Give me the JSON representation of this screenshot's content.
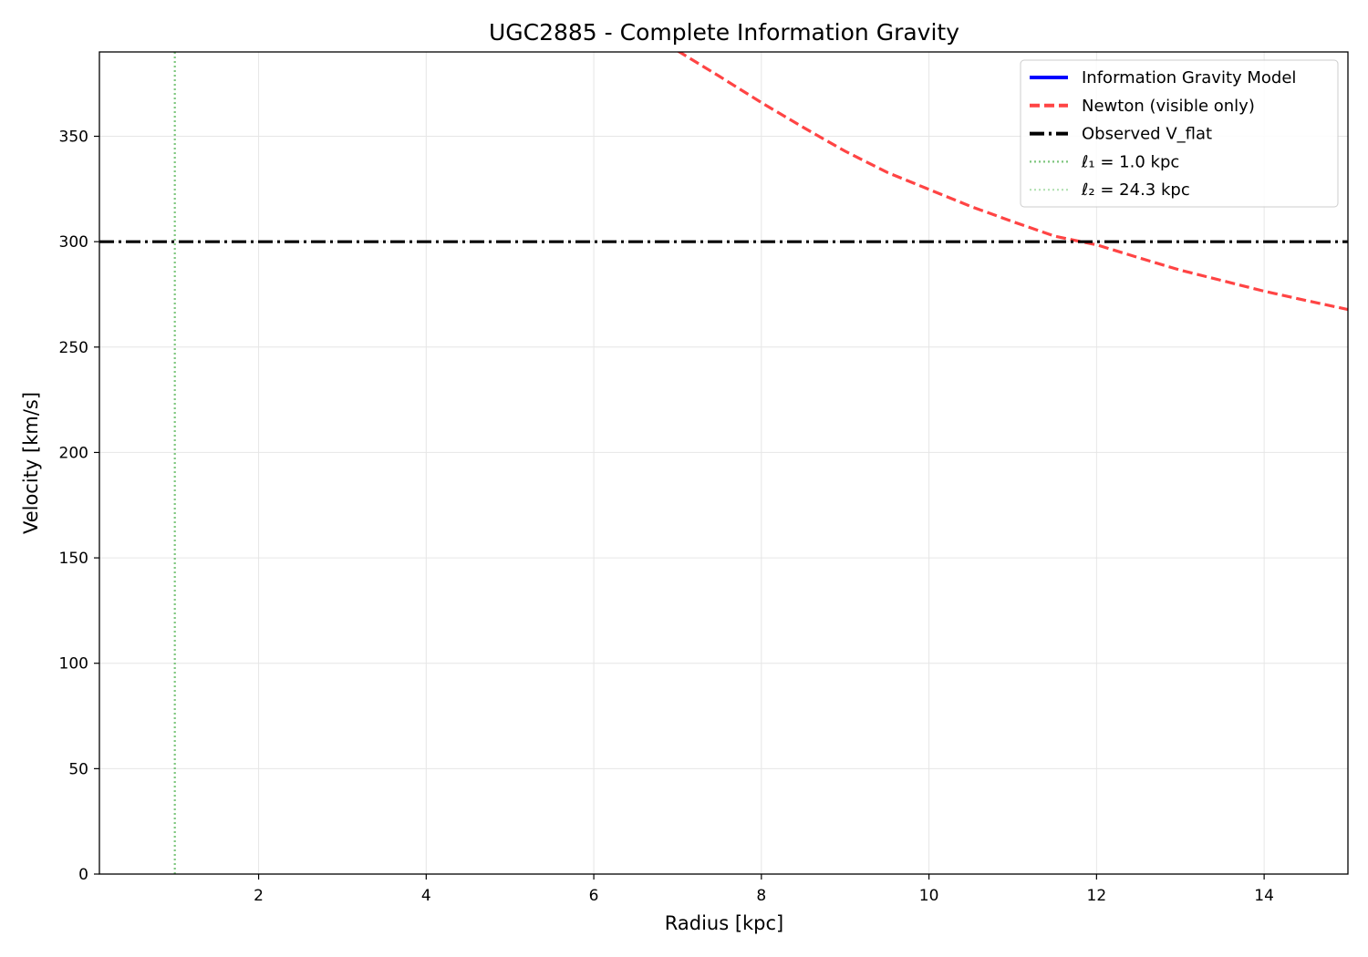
{
  "chart_data": {
    "type": "line",
    "title": "UGC2885 - Complete Information Gravity",
    "xlabel": "Radius [kpc]",
    "ylabel": "Velocity [km/s]",
    "xlim": [
      0.1,
      15.0
    ],
    "ylim": [
      0,
      390
    ],
    "xticks": [
      2,
      4,
      6,
      8,
      10,
      12,
      14
    ],
    "yticks": [
      0,
      50,
      100,
      150,
      200,
      250,
      300,
      350
    ],
    "grid": true,
    "legend_position": "top-right",
    "series": [
      {
        "name": "Information Gravity Model",
        "style": "solid",
        "color": "#0000ff",
        "x": [],
        "y": []
      },
      {
        "name": "Newton (visible only)",
        "style": "dashed",
        "color": "#ff4444",
        "x": [
          7.0,
          7.5,
          8.0,
          8.5,
          9.0,
          9.5,
          10.0,
          10.5,
          11.0,
          11.5,
          12.0,
          12.5,
          13.0,
          13.5,
          14.0,
          14.5,
          15.0
        ],
        "y": [
          390.5,
          378.4,
          366.0,
          354.2,
          342.9,
          332.9,
          324.8,
          316.7,
          309.5,
          302.6,
          298.5,
          292.4,
          286.5,
          281.5,
          276.5,
          272.1,
          267.8
        ]
      },
      {
        "name": "Observed V_flat",
        "style": "dashdot",
        "color": "#000000",
        "x": [
          0.1,
          15.0
        ],
        "y": [
          300,
          300
        ]
      }
    ],
    "vlines": [
      {
        "name": "ℓ₁ = 1.0 kpc",
        "x": 1.0,
        "color": "#5cb85c",
        "opacity": 0.8,
        "style": "dotted"
      },
      {
        "name": "ℓ₂ = 24.3 kpc",
        "x": 24.3,
        "color": "#9fd89f",
        "opacity": 0.8,
        "style": "dotted"
      }
    ]
  }
}
